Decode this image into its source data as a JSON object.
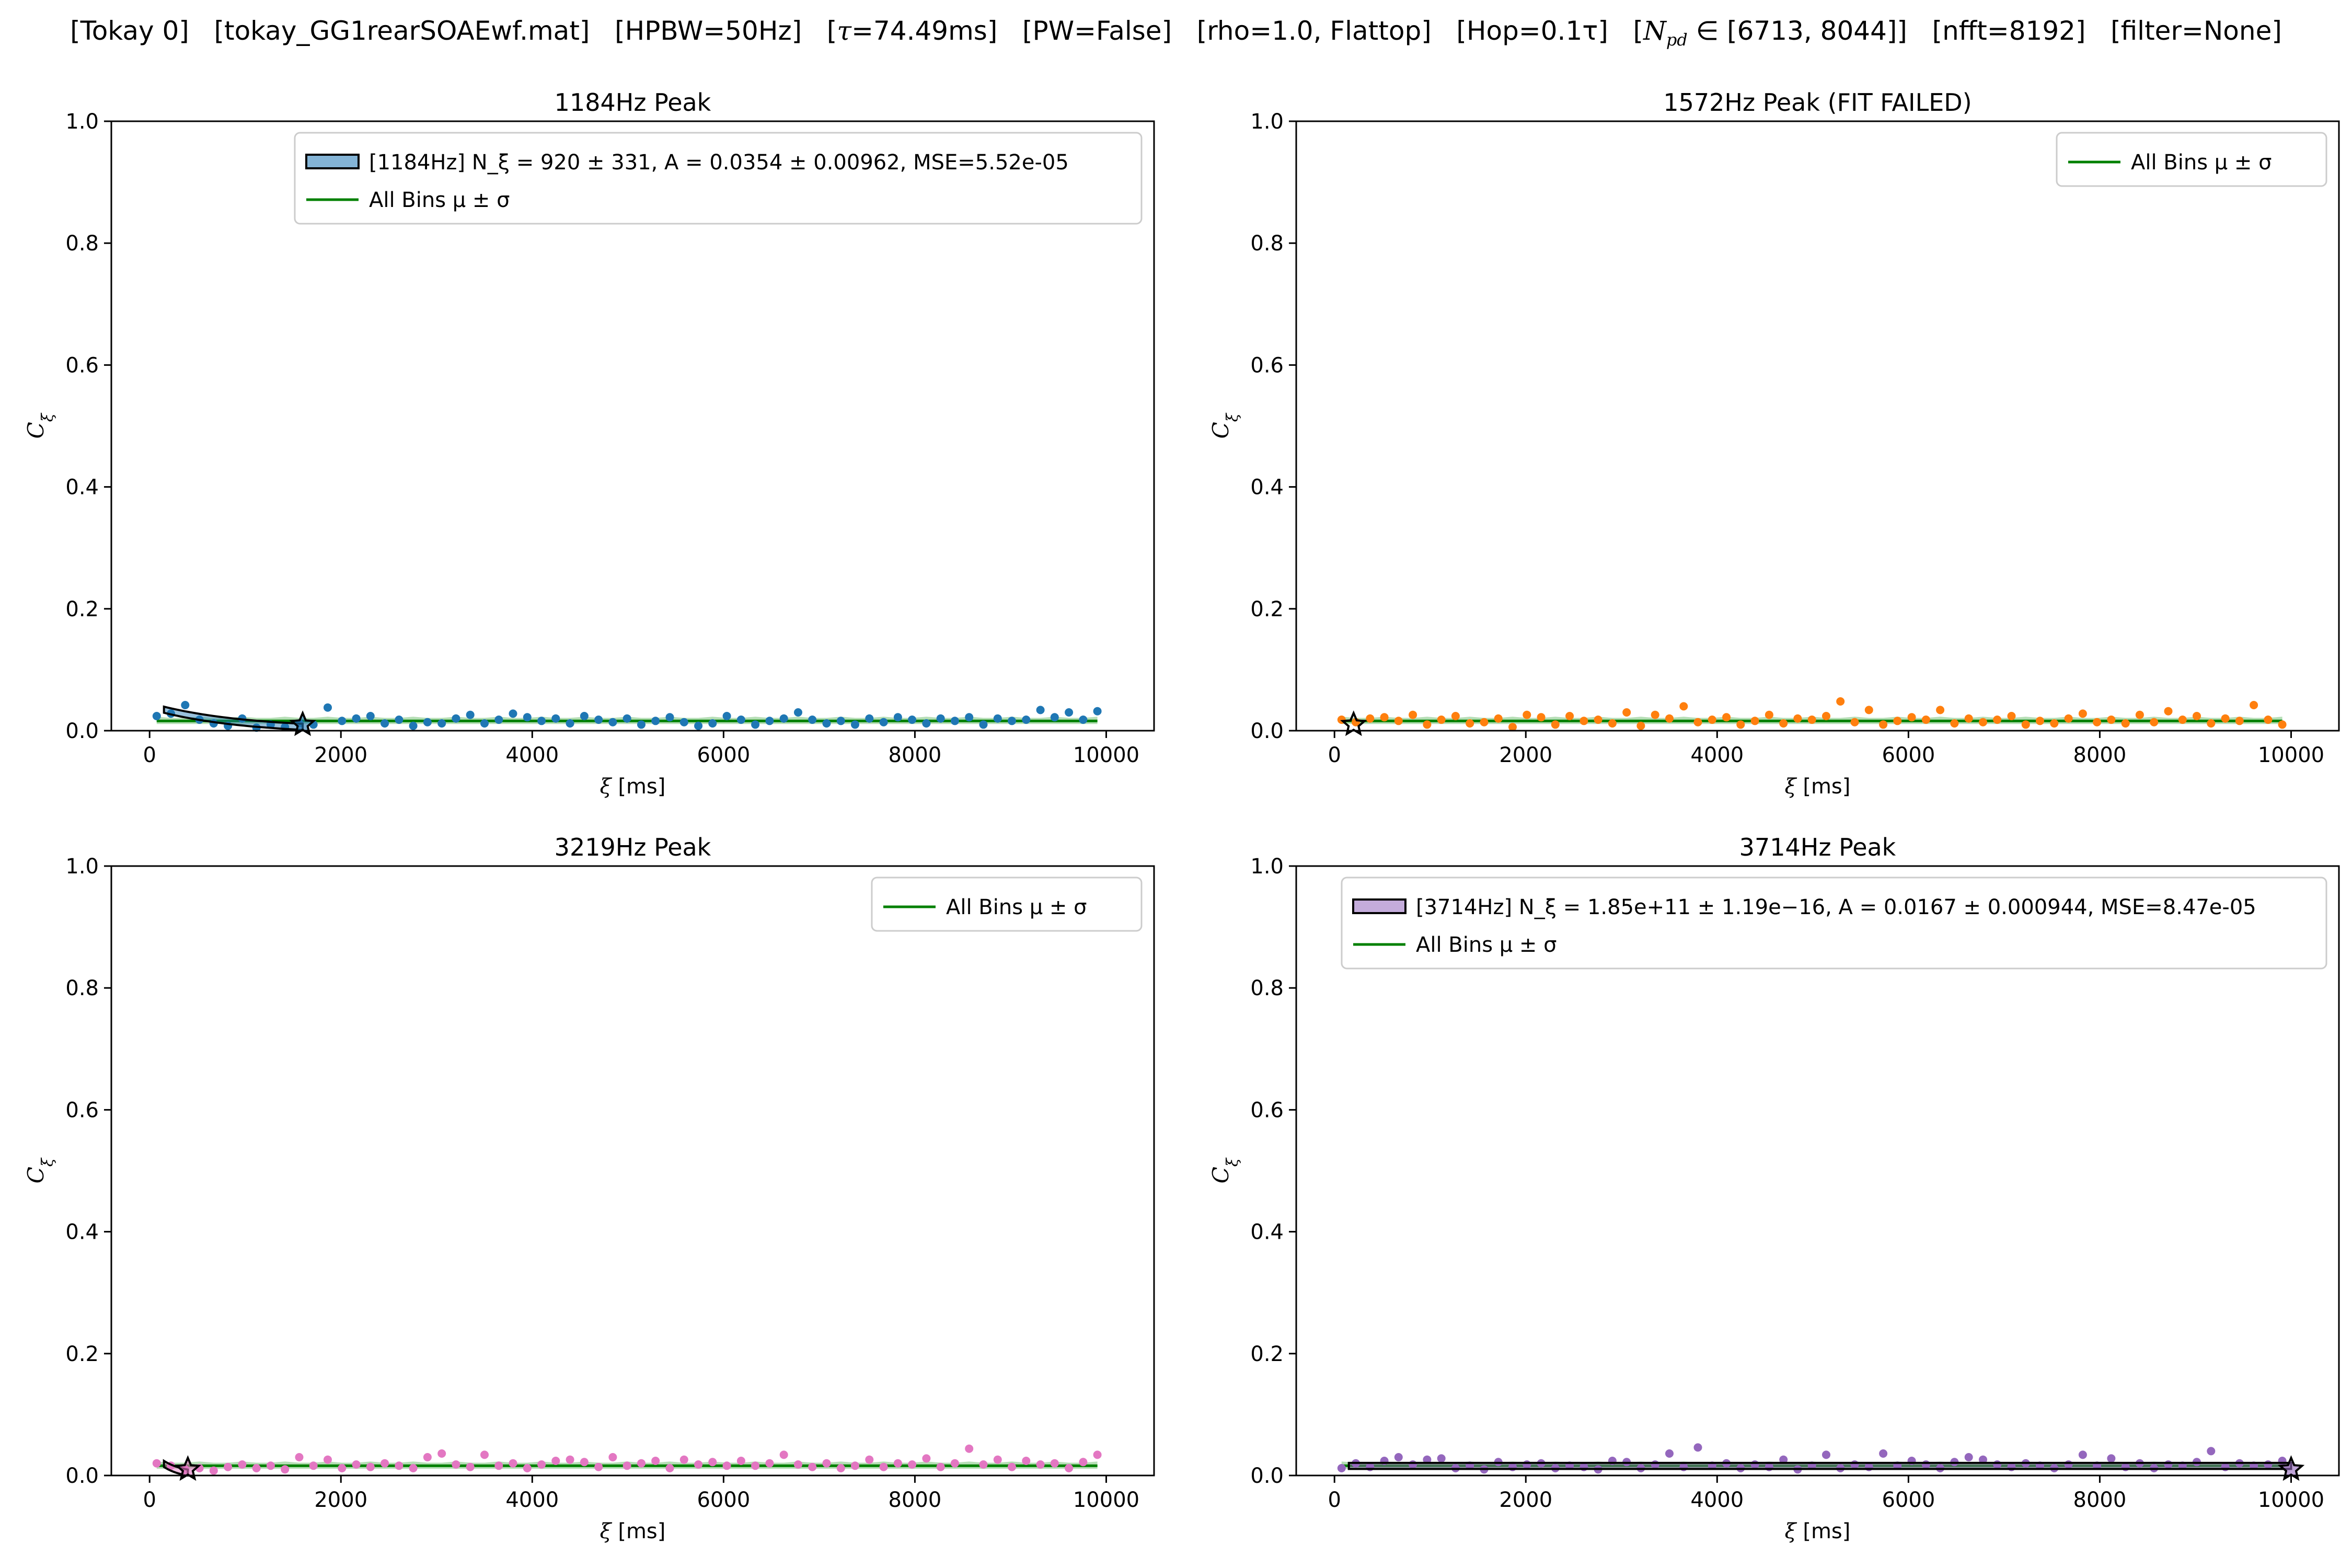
{
  "suptitle": "[Tokay 0]   [tokay_GG1rearSOAEwf.mat]   [HPBW=50Hz]   [τ=74.49ms]   [PW=False]   [rho=1.0, Flattop]   [Hop=0.1τ]   [N_pd ∈ [6713, 8044]]   [nfft=8192]   [filter=None]",
  "chart_data": [
    {
      "type": "scatter",
      "title": "1184Hz Peak",
      "xlabel": "ξ [ms]",
      "ylabel": "C_ξ",
      "xlim": [
        -400,
        10500
      ],
      "ylim": [
        0,
        1.0
      ],
      "xticks": [
        "0",
        "2000",
        "4000",
        "6000",
        "8000",
        "10000"
      ],
      "yticks": [
        "0.0",
        "0.2",
        "0.4",
        "0.6",
        "0.8",
        "1.0"
      ],
      "color": "#1f77b4",
      "legend": [
        "[1184Hz] N_ξ = 920 ± 331, A = 0.0354 ± 0.00962, MSE=5.52e-05",
        "All Bins μ ± σ"
      ],
      "legend_position": "top-right",
      "fit": {
        "N": 920,
        "A": 0.0354,
        "x_start": 150,
        "x_end": 1600
      },
      "star_x": 1600,
      "mean": 0.016,
      "sigma": 0.005,
      "points": [
        [
          74,
          0.024
        ],
        [
          223,
          0.028
        ],
        [
          372,
          0.042
        ],
        [
          521,
          0.018
        ],
        [
          670,
          0.012
        ],
        [
          819,
          0.008
        ],
        [
          968,
          0.02
        ],
        [
          1117,
          0.005
        ],
        [
          1266,
          0.01
        ],
        [
          1415,
          0.006
        ],
        [
          1564,
          0.012
        ],
        [
          1713,
          0.01
        ],
        [
          1862,
          0.038
        ],
        [
          2011,
          0.016
        ],
        [
          2160,
          0.02
        ],
        [
          2309,
          0.024
        ],
        [
          2458,
          0.012
        ],
        [
          2607,
          0.018
        ],
        [
          2756,
          0.008
        ],
        [
          2905,
          0.014
        ],
        [
          3054,
          0.012
        ],
        [
          3203,
          0.02
        ],
        [
          3352,
          0.026
        ],
        [
          3501,
          0.012
        ],
        [
          3650,
          0.018
        ],
        [
          3799,
          0.028
        ],
        [
          3948,
          0.022
        ],
        [
          4097,
          0.016
        ],
        [
          4246,
          0.02
        ],
        [
          4395,
          0.012
        ],
        [
          4544,
          0.024
        ],
        [
          4693,
          0.018
        ],
        [
          4842,
          0.014
        ],
        [
          4991,
          0.02
        ],
        [
          5140,
          0.01
        ],
        [
          5289,
          0.016
        ],
        [
          5438,
          0.022
        ],
        [
          5587,
          0.014
        ],
        [
          5736,
          0.008
        ],
        [
          5885,
          0.012
        ],
        [
          6034,
          0.024
        ],
        [
          6183,
          0.018
        ],
        [
          6332,
          0.01
        ],
        [
          6481,
          0.016
        ],
        [
          6630,
          0.02
        ],
        [
          6779,
          0.03
        ],
        [
          6928,
          0.018
        ],
        [
          7077,
          0.012
        ],
        [
          7226,
          0.016
        ],
        [
          7375,
          0.01
        ],
        [
          7524,
          0.02
        ],
        [
          7673,
          0.014
        ],
        [
          7822,
          0.022
        ],
        [
          7971,
          0.018
        ],
        [
          8120,
          0.012
        ],
        [
          8269,
          0.02
        ],
        [
          8418,
          0.016
        ],
        [
          8567,
          0.022
        ],
        [
          8716,
          0.01
        ],
        [
          8865,
          0.02
        ],
        [
          9014,
          0.016
        ],
        [
          9163,
          0.018
        ],
        [
          9312,
          0.034
        ],
        [
          9461,
          0.022
        ],
        [
          9610,
          0.03
        ],
        [
          9759,
          0.018
        ],
        [
          9908,
          0.032
        ]
      ]
    },
    {
      "type": "scatter",
      "title": "1572Hz Peak (FIT FAILED)",
      "xlabel": "ξ [ms]",
      "ylabel": "C_ξ",
      "xlim": [
        -400,
        10500
      ],
      "ylim": [
        0,
        1.0
      ],
      "xticks": [
        "0",
        "2000",
        "4000",
        "6000",
        "8000",
        "10000"
      ],
      "yticks": [
        "0.0",
        "0.2",
        "0.4",
        "0.6",
        "0.8",
        "1.0"
      ],
      "color": "#ff7f0e",
      "legend": [
        "All Bins μ ± σ"
      ],
      "legend_position": "top-right",
      "fit": null,
      "star_x": 200,
      "mean": 0.016,
      "sigma": 0.005,
      "points": [
        [
          74,
          0.018
        ],
        [
          223,
          0.014
        ],
        [
          372,
          0.02
        ],
        [
          521,
          0.022
        ],
        [
          670,
          0.016
        ],
        [
          819,
          0.026
        ],
        [
          968,
          0.01
        ],
        [
          1117,
          0.018
        ],
        [
          1266,
          0.024
        ],
        [
          1415,
          0.012
        ],
        [
          1564,
          0.014
        ],
        [
          1713,
          0.02
        ],
        [
          1862,
          0.006
        ],
        [
          2011,
          0.026
        ],
        [
          2160,
          0.022
        ],
        [
          2309,
          0.01
        ],
        [
          2458,
          0.024
        ],
        [
          2607,
          0.016
        ],
        [
          2756,
          0.018
        ],
        [
          2905,
          0.012
        ],
        [
          3054,
          0.03
        ],
        [
          3203,
          0.008
        ],
        [
          3352,
          0.026
        ],
        [
          3501,
          0.02
        ],
        [
          3650,
          0.04
        ],
        [
          3799,
          0.014
        ],
        [
          3948,
          0.018
        ],
        [
          4097,
          0.022
        ],
        [
          4246,
          0.01
        ],
        [
          4395,
          0.016
        ],
        [
          4544,
          0.026
        ],
        [
          4693,
          0.012
        ],
        [
          4842,
          0.02
        ],
        [
          4991,
          0.018
        ],
        [
          5140,
          0.024
        ],
        [
          5289,
          0.048
        ],
        [
          5438,
          0.014
        ],
        [
          5587,
          0.034
        ],
        [
          5736,
          0.01
        ],
        [
          5885,
          0.016
        ],
        [
          6034,
          0.022
        ],
        [
          6183,
          0.018
        ],
        [
          6332,
          0.034
        ],
        [
          6481,
          0.012
        ],
        [
          6630,
          0.02
        ],
        [
          6779,
          0.014
        ],
        [
          6928,
          0.018
        ],
        [
          7077,
          0.024
        ],
        [
          7226,
          0.01
        ],
        [
          7375,
          0.016
        ],
        [
          7524,
          0.012
        ],
        [
          7673,
          0.02
        ],
        [
          7822,
          0.028
        ],
        [
          7971,
          0.014
        ],
        [
          8120,
          0.018
        ],
        [
          8269,
          0.012
        ],
        [
          8418,
          0.026
        ],
        [
          8567,
          0.014
        ],
        [
          8716,
          0.032
        ],
        [
          8865,
          0.018
        ],
        [
          9014,
          0.024
        ],
        [
          9163,
          0.012
        ],
        [
          9312,
          0.02
        ],
        [
          9461,
          0.016
        ],
        [
          9610,
          0.042
        ],
        [
          9759,
          0.018
        ],
        [
          9908,
          0.01
        ]
      ]
    },
    {
      "type": "scatter",
      "title": "3219Hz Peak",
      "xlabel": "ξ [ms]",
      "ylabel": "C_ξ",
      "xlim": [
        -400,
        10500
      ],
      "ylim": [
        0,
        1.0
      ],
      "xticks": [
        "0",
        "2000",
        "4000",
        "6000",
        "8000",
        "10000"
      ],
      "yticks": [
        "0.0",
        "0.2",
        "0.4",
        "0.6",
        "0.8",
        "1.0"
      ],
      "color": "#e377c2",
      "legend": [
        "All Bins μ ± σ"
      ],
      "legend_position": "top-right",
      "fit": {
        "N": 200,
        "A": 0.02,
        "x_start": 150,
        "x_end": 400
      },
      "star_x": 400,
      "mean": 0.016,
      "sigma": 0.005,
      "points": [
        [
          74,
          0.02
        ],
        [
          223,
          0.016
        ],
        [
          372,
          0.01
        ],
        [
          521,
          0.012
        ],
        [
          670,
          0.008
        ],
        [
          819,
          0.014
        ],
        [
          968,
          0.018
        ],
        [
          1117,
          0.012
        ],
        [
          1266,
          0.016
        ],
        [
          1415,
          0.01
        ],
        [
          1564,
          0.03
        ],
        [
          1713,
          0.016
        ],
        [
          1862,
          0.026
        ],
        [
          2011,
          0.012
        ],
        [
          2160,
          0.018
        ],
        [
          2309,
          0.014
        ],
        [
          2458,
          0.02
        ],
        [
          2607,
          0.016
        ],
        [
          2756,
          0.012
        ],
        [
          2905,
          0.03
        ],
        [
          3054,
          0.036
        ],
        [
          3203,
          0.018
        ],
        [
          3352,
          0.014
        ],
        [
          3501,
          0.034
        ],
        [
          3650,
          0.016
        ],
        [
          3799,
          0.02
        ],
        [
          3948,
          0.012
        ],
        [
          4097,
          0.018
        ],
        [
          4246,
          0.024
        ],
        [
          4395,
          0.026
        ],
        [
          4544,
          0.022
        ],
        [
          4693,
          0.014
        ],
        [
          4842,
          0.03
        ],
        [
          4991,
          0.016
        ],
        [
          5140,
          0.02
        ],
        [
          5289,
          0.024
        ],
        [
          5438,
          0.012
        ],
        [
          5587,
          0.026
        ],
        [
          5736,
          0.018
        ],
        [
          5885,
          0.022
        ],
        [
          6034,
          0.016
        ],
        [
          6183,
          0.024
        ],
        [
          6332,
          0.016
        ],
        [
          6481,
          0.02
        ],
        [
          6630,
          0.034
        ],
        [
          6779,
          0.018
        ],
        [
          6928,
          0.014
        ],
        [
          7077,
          0.02
        ],
        [
          7226,
          0.012
        ],
        [
          7375,
          0.016
        ],
        [
          7524,
          0.026
        ],
        [
          7673,
          0.014
        ],
        [
          7822,
          0.02
        ],
        [
          7971,
          0.018
        ],
        [
          8120,
          0.028
        ],
        [
          8269,
          0.014
        ],
        [
          8418,
          0.02
        ],
        [
          8567,
          0.044
        ],
        [
          8716,
          0.018
        ],
        [
          8865,
          0.026
        ],
        [
          9014,
          0.014
        ],
        [
          9163,
          0.024
        ],
        [
          9312,
          0.018
        ],
        [
          9461,
          0.02
        ],
        [
          9610,
          0.012
        ],
        [
          9759,
          0.022
        ],
        [
          9908,
          0.034
        ]
      ]
    },
    {
      "type": "scatter",
      "title": "3714Hz Peak",
      "xlabel": "ξ [ms]",
      "ylabel": "C_ξ",
      "xlim": [
        -400,
        10500
      ],
      "ylim": [
        0,
        1.0
      ],
      "xticks": [
        "0",
        "2000",
        "4000",
        "6000",
        "8000",
        "10000"
      ],
      "yticks": [
        "0.0",
        "0.2",
        "0.4",
        "0.6",
        "0.8",
        "1.0"
      ],
      "color": "#9467bd",
      "legend": [
        "[3714Hz] N_ξ = 1.85e+11 ± 1.19e−16, A = 0.0167 ± 0.000944, MSE=8.47e-05",
        "All Bins μ ± σ"
      ],
      "legend_position": "top-right",
      "fit": {
        "N": 185000000000,
        "A": 0.0167,
        "x_start": 150,
        "x_end": 10000
      },
      "star_x": 10000,
      "mean": 0.016,
      "sigma": 0.005,
      "points": [
        [
          74,
          0.012
        ],
        [
          223,
          0.02
        ],
        [
          372,
          0.014
        ],
        [
          521,
          0.024
        ],
        [
          670,
          0.03
        ],
        [
          819,
          0.018
        ],
        [
          968,
          0.026
        ],
        [
          1117,
          0.028
        ],
        [
          1266,
          0.012
        ],
        [
          1415,
          0.016
        ],
        [
          1564,
          0.01
        ],
        [
          1713,
          0.022
        ],
        [
          1862,
          0.014
        ],
        [
          2011,
          0.018
        ],
        [
          2160,
          0.02
        ],
        [
          2309,
          0.012
        ],
        [
          2458,
          0.016
        ],
        [
          2607,
          0.014
        ],
        [
          2756,
          0.01
        ],
        [
          2905,
          0.024
        ],
        [
          3054,
          0.022
        ],
        [
          3203,
          0.012
        ],
        [
          3352,
          0.018
        ],
        [
          3501,
          0.036
        ],
        [
          3650,
          0.014
        ],
        [
          3799,
          0.046
        ],
        [
          3948,
          0.016
        ],
        [
          4097,
          0.02
        ],
        [
          4246,
          0.012
        ],
        [
          4395,
          0.018
        ],
        [
          4544,
          0.014
        ],
        [
          4693,
          0.026
        ],
        [
          4842,
          0.01
        ],
        [
          4991,
          0.016
        ],
        [
          5140,
          0.034
        ],
        [
          5289,
          0.012
        ],
        [
          5438,
          0.018
        ],
        [
          5587,
          0.014
        ],
        [
          5736,
          0.036
        ],
        [
          5885,
          0.016
        ],
        [
          6034,
          0.024
        ],
        [
          6183,
          0.018
        ],
        [
          6332,
          0.012
        ],
        [
          6481,
          0.022
        ],
        [
          6630,
          0.03
        ],
        [
          6779,
          0.026
        ],
        [
          6928,
          0.018
        ],
        [
          7077,
          0.014
        ],
        [
          7226,
          0.02
        ],
        [
          7375,
          0.016
        ],
        [
          7524,
          0.012
        ],
        [
          7673,
          0.018
        ],
        [
          7822,
          0.034
        ],
        [
          7971,
          0.016
        ],
        [
          8120,
          0.028
        ],
        [
          8269,
          0.014
        ],
        [
          8418,
          0.02
        ],
        [
          8567,
          0.012
        ],
        [
          8716,
          0.018
        ],
        [
          8865,
          0.016
        ],
        [
          9014,
          0.022
        ],
        [
          9163,
          0.04
        ],
        [
          9312,
          0.014
        ],
        [
          9461,
          0.02
        ],
        [
          9610,
          0.016
        ],
        [
          9759,
          0.018
        ],
        [
          9908,
          0.024
        ]
      ]
    }
  ]
}
